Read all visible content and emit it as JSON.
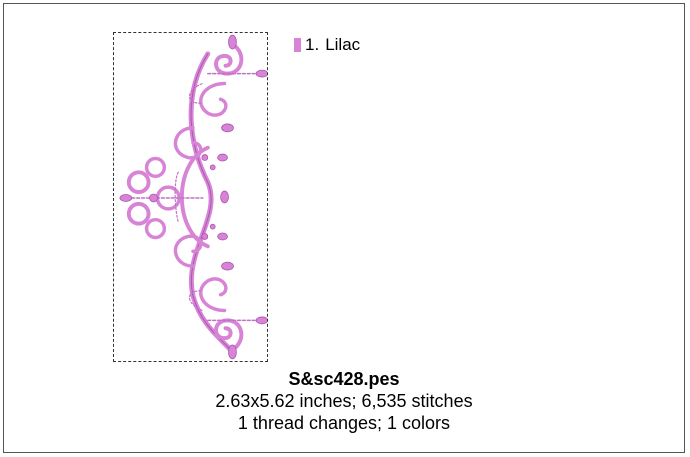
{
  "design": {
    "thread_color": "#d884d6",
    "thread_color_dark": "#a856b0"
  },
  "legend": {
    "items": [
      {
        "number": "1.",
        "name": "Lilac",
        "color": "#d884d6"
      }
    ]
  },
  "info": {
    "filename": "S&sc428.pes",
    "size_line": "2.63x5.62 inches; 6,535 stitches",
    "changes_line": "1 thread changes; 1 colors"
  }
}
